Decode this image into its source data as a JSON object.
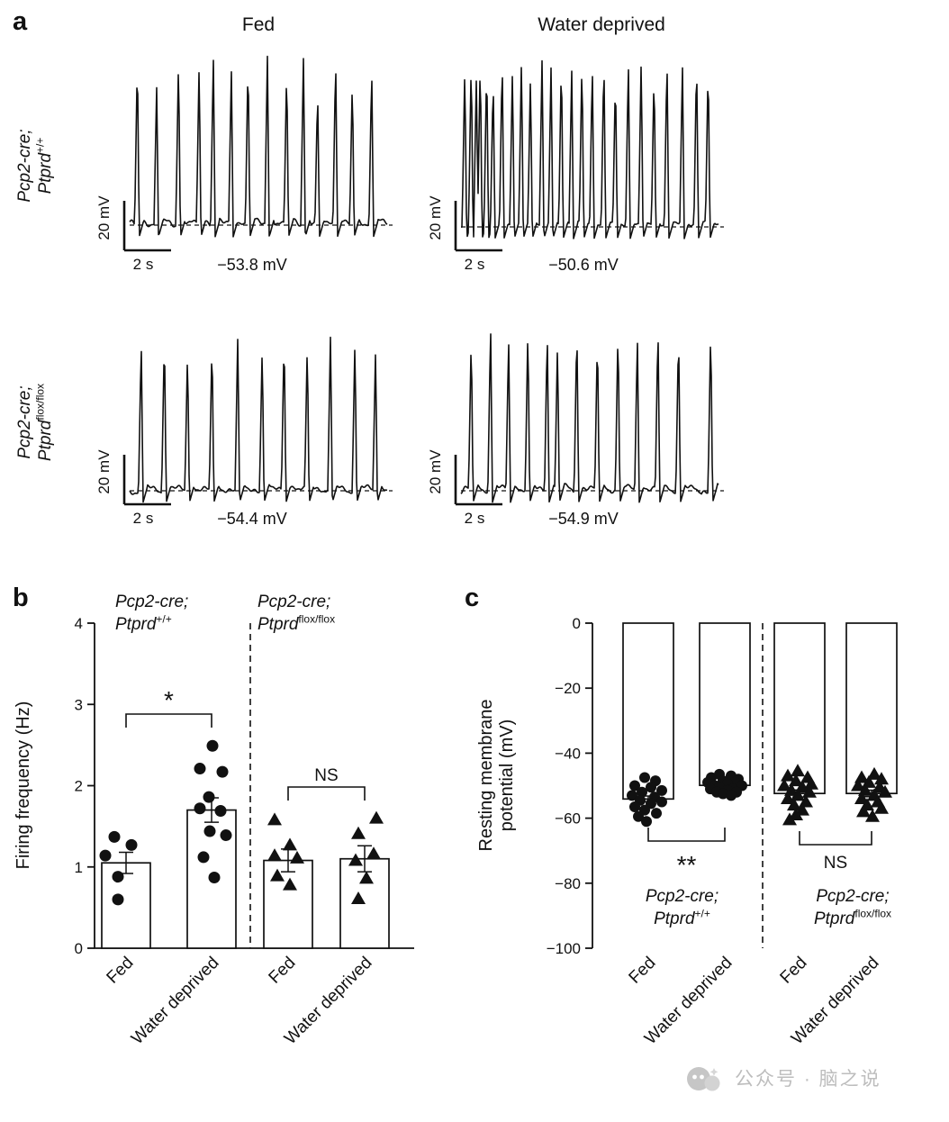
{
  "figure": {
    "panel_a": {
      "label": "a",
      "col_headers": [
        "Fed",
        "Water deprived"
      ],
      "rows": [
        {
          "line1": "Pcp2-cre;",
          "gene": "Ptprd",
          "sup": "+/+"
        },
        {
          "line1": "Pcp2-cre;",
          "gene": "Ptprd",
          "sup": "flox/flox"
        }
      ],
      "traces": [
        {
          "condition": "Fed",
          "genotype": "Pcp2-cre; Ptprd+/+",
          "scale_v": "20 mV",
          "scale_h": "2 s",
          "rmp": "−53.8 mV",
          "spikes": [
            [
              0.03,
              1
            ],
            [
              0.105,
              0.82
            ],
            [
              0.19,
              1
            ],
            [
              0.27,
              0.97
            ],
            [
              0.325,
              1
            ],
            [
              0.395,
              0.92
            ],
            [
              0.46,
              1
            ],
            [
              0.535,
              1
            ],
            [
              0.61,
              0.95
            ],
            [
              0.675,
              1
            ],
            [
              0.73,
              0.8
            ],
            [
              0.8,
              1
            ],
            [
              0.865,
              0.88
            ],
            [
              0.94,
              0.93
            ]
          ]
        },
        {
          "condition": "Water deprived",
          "genotype": "Pcp2-cre; Ptprd+/+",
          "scale_v": "20 mV",
          "scale_h": "2 s",
          "rmp": "−50.6 mV",
          "spikes": [
            [
              0.015,
              0.95
            ],
            [
              0.04,
              1
            ],
            [
              0.06,
              0.9
            ],
            [
              0.075,
              1
            ],
            [
              0.1,
              0.97
            ],
            [
              0.125,
              0.88
            ],
            [
              0.16,
              1
            ],
            [
              0.2,
              0.94
            ],
            [
              0.235,
              1
            ],
            [
              0.27,
              0.9
            ],
            [
              0.315,
              1
            ],
            [
              0.35,
              0.96
            ],
            [
              0.39,
              1
            ],
            [
              0.43,
              0.92
            ],
            [
              0.47,
              1
            ],
            [
              0.51,
              0.95
            ],
            [
              0.555,
              1
            ],
            [
              0.6,
              0.9
            ],
            [
              0.65,
              0.97
            ],
            [
              0.7,
              1
            ],
            [
              0.75,
              0.93
            ],
            [
              0.8,
              1
            ],
            [
              0.86,
              0.95
            ],
            [
              0.915,
              1
            ],
            [
              0.96,
              0.97
            ]
          ]
        },
        {
          "condition": "Fed",
          "genotype": "Pcp2-cre; Ptprd flox/flox",
          "scale_v": "20 mV",
          "scale_h": "2 s",
          "rmp": "−54.4 mV",
          "spikes": [
            [
              0.045,
              0.95
            ],
            [
              0.135,
              1
            ],
            [
              0.225,
              0.9
            ],
            [
              0.32,
              0.97
            ],
            [
              0.42,
              1
            ],
            [
              0.515,
              0.93
            ],
            [
              0.6,
              1
            ],
            [
              0.69,
              0.95
            ],
            [
              0.78,
              1
            ],
            [
              0.875,
              0.97
            ],
            [
              0.955,
              0.9
            ]
          ]
        },
        {
          "condition": "Water deprived",
          "genotype": "Pcp2-cre; Ptprd flox/flox",
          "scale_v": "20 mV",
          "scale_h": "2 s",
          "rmp": "−54.9 mV",
          "spikes": [
            [
              0.04,
              0.95
            ],
            [
              0.115,
              1
            ],
            [
              0.185,
              0.92
            ],
            [
              0.26,
              1
            ],
            [
              0.335,
              0.97
            ],
            [
              0.375,
              0.9
            ],
            [
              0.45,
              1
            ],
            [
              0.53,
              0.95
            ],
            [
              0.61,
              1
            ],
            [
              0.685,
              0.93
            ],
            [
              0.765,
              1
            ],
            [
              0.845,
              0.97
            ],
            [
              0.97,
              1
            ]
          ]
        }
      ]
    },
    "panel_b_label": "b",
    "panel_c_label": "c",
    "watermark": {
      "text": "公众号 · 脑之说"
    }
  },
  "chart_data": [
    {
      "panel": "b",
      "type": "bar",
      "ylabel": "Firing frequency (Hz)",
      "ylim": [
        0,
        4
      ],
      "yticks": [
        0,
        1,
        2,
        3,
        4
      ],
      "categories": [
        "Fed",
        "Water deprived",
        "Fed",
        "Water deprived"
      ],
      "groups": [
        {
          "title_line1": "Pcp2-cre;",
          "gene": "Ptprd",
          "sup": "+/+",
          "sig": "*",
          "bars": [
            {
              "label": "Fed",
              "mean": 1.05,
              "sem": 0.13,
              "marker": "circle",
              "points": [
                [
                  1.37,
                  -13
                ],
                [
                  1.27,
                  6
                ],
                [
                  1.14,
                  -23
                ],
                [
                  0.88,
                  -9
                ],
                [
                  0.6,
                  -9
                ]
              ]
            },
            {
              "label": "Water deprived",
              "mean": 1.7,
              "sem": 0.15,
              "marker": "circle",
              "points": [
                [
                  2.49,
                  1
                ],
                [
                  2.21,
                  -13
                ],
                [
                  2.17,
                  12
                ],
                [
                  1.86,
                  -3
                ],
                [
                  1.72,
                  -13
                ],
                [
                  1.69,
                  10
                ],
                [
                  1.44,
                  -2
                ],
                [
                  1.39,
                  16
                ],
                [
                  1.12,
                  -9
                ],
                [
                  0.87,
                  3
                ]
              ]
            }
          ]
        },
        {
          "title_line1": "Pcp2-cre;",
          "gene": "Ptprd",
          "sup": "flox/flox",
          "sig": "NS",
          "bars": [
            {
              "label": "Fed",
              "mean": 1.08,
              "sem": 0.14,
              "marker": "triangle",
              "points": [
                [
                  1.58,
                  -15
                ],
                [
                  1.27,
                  2
                ],
                [
                  1.14,
                  -15
                ],
                [
                  1.11,
                  10
                ],
                [
                  0.89,
                  -12
                ],
                [
                  0.78,
                  2
                ]
              ]
            },
            {
              "label": "Water deprived",
              "mean": 1.1,
              "sem": 0.16,
              "marker": "triangle",
              "points": [
                [
                  1.6,
                  13
                ],
                [
                  1.41,
                  -7
                ],
                [
                  1.16,
                  10
                ],
                [
                  1.08,
                  -10
                ],
                [
                  0.86,
                  2
                ],
                [
                  0.61,
                  -7
                ]
              ]
            }
          ]
        }
      ]
    },
    {
      "panel": "c",
      "type": "bar",
      "ylabel_line1": "Resting membrane",
      "ylabel_line2": "potential (mV)",
      "ylim": [
        -100,
        0
      ],
      "yticks": [
        0,
        -20,
        -40,
        -60,
        -80,
        -100
      ],
      "categories": [
        "Fed",
        "Water deprived",
        "Fed",
        "Water deprived"
      ],
      "groups": [
        {
          "title_line1": "Pcp2-cre;",
          "gene": "Ptprd",
          "sup": "+/+",
          "sig": "**",
          "bars": [
            {
              "label": "Fed",
              "mean": -54.1,
              "sem": 0.9,
              "marker": "circle",
              "points": [
                [
                  -47.5,
                  -4
                ],
                [
                  -48.5,
                  8
                ],
                [
                  -50,
                  -15
                ],
                [
                  -50.5,
                  3
                ],
                [
                  -51.5,
                  15
                ],
                [
                  -52,
                  -7
                ],
                [
                  -53,
                  -18
                ],
                [
                  -53.5,
                  7
                ],
                [
                  -54.5,
                  -9
                ],
                [
                  -55,
                  15
                ],
                [
                  -55.5,
                  3
                ],
                [
                  -56.5,
                  -15
                ],
                [
                  -57.5,
                  -4
                ],
                [
                  -58.5,
                  9
                ],
                [
                  -59.5,
                  -11
                ],
                [
                  -61,
                  -2
                ]
              ]
            },
            {
              "label": "Water deprived",
              "mean": -49.9,
              "sem": 0.4,
              "marker": "circle",
              "points": [
                [
                  -46.5,
                  -6
                ],
                [
                  -47,
                  7
                ],
                [
                  -47.5,
                  -15
                ],
                [
                  -48,
                  15
                ],
                [
                  -48.5,
                  -2
                ],
                [
                  -49,
                  -19
                ],
                [
                  -49,
                  11
                ],
                [
                  -49.5,
                  3
                ],
                [
                  -50,
                  -11
                ],
                [
                  -50,
                  19
                ],
                [
                  -50.5,
                  -6
                ],
                [
                  -51,
                  9
                ],
                [
                  -51,
                  -16
                ],
                [
                  -51.5,
                  3
                ],
                [
                  -52,
                  -9
                ],
                [
                  -52,
                  13
                ],
                [
                  -52.5,
                  -2
                ],
                [
                  -53,
                  7
                ]
              ]
            }
          ]
        },
        {
          "title_line1": "Pcp2-cre;",
          "gene": "Ptprd",
          "sup": "flox/flox",
          "sig": "NS",
          "bars": [
            {
              "label": "Fed",
              "mean": -52.4,
              "sem": 1.1,
              "marker": "triangle",
              "points": [
                [
                  -45.5,
                  -2
                ],
                [
                  -47,
                  -13
                ],
                [
                  -47.5,
                  9
                ],
                [
                  -48.5,
                  -4
                ],
                [
                  -49.5,
                  13
                ],
                [
                  -50,
                  -17
                ],
                [
                  -50.5,
                  3
                ],
                [
                  -51.5,
                  -9
                ],
                [
                  -52,
                  11
                ],
                [
                  -53,
                  -2
                ],
                [
                  -54,
                  -13
                ],
                [
                  -55,
                  7
                ],
                [
                  -56,
                  -6
                ],
                [
                  -57.5,
                  3
                ],
                [
                  -59,
                  -4
                ],
                [
                  -60.5,
                  -11
                ]
              ]
            },
            {
              "label": "Water deprived",
              "mean": -52.4,
              "sem": 1.0,
              "marker": "triangle",
              "points": [
                [
                  -46.5,
                  3
                ],
                [
                  -47.5,
                  -11
                ],
                [
                  -48,
                  11
                ],
                [
                  -49,
                  -3
                ],
                [
                  -50,
                  -15
                ],
                [
                  -50.5,
                  9
                ],
                [
                  -51.5,
                  -7
                ],
                [
                  -52,
                  15
                ],
                [
                  -53,
                  3
                ],
                [
                  -54,
                  -11
                ],
                [
                  -55,
                  7
                ],
                [
                  -56,
                  -5
                ],
                [
                  -57,
                  11
                ],
                [
                  -58,
                  -9
                ],
                [
                  -59.5,
                  1
                ]
              ]
            }
          ]
        }
      ]
    }
  ]
}
